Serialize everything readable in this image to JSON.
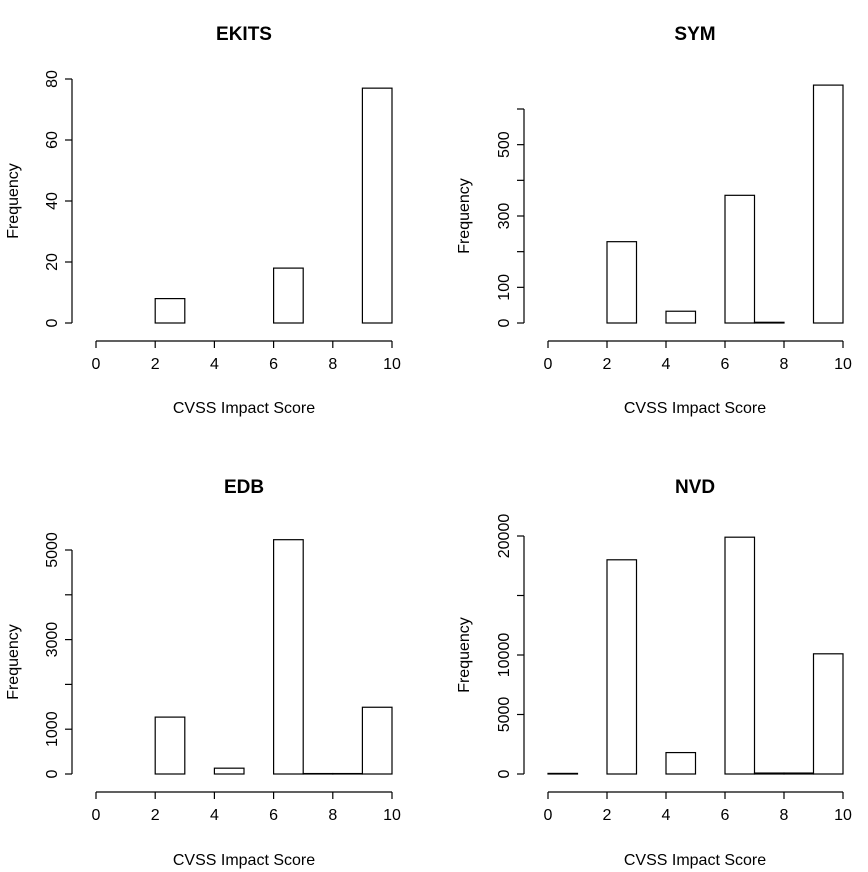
{
  "chart_data": [
    {
      "type": "bar",
      "title": "EKITS",
      "xlabel": "CVSS Impact Score",
      "ylabel": "Frequency",
      "bins": [
        [
          0,
          1
        ],
        [
          1,
          2
        ],
        [
          2,
          3
        ],
        [
          3,
          4
        ],
        [
          4,
          5
        ],
        [
          5,
          6
        ],
        [
          6,
          7
        ],
        [
          7,
          8
        ],
        [
          8,
          9
        ],
        [
          9,
          10
        ]
      ],
      "values": [
        0,
        0,
        8,
        0,
        0,
        0,
        18,
        0,
        0,
        77
      ],
      "xlim": [
        0,
        10
      ],
      "ylim": [
        0,
        80
      ],
      "xticks": [
        0,
        2,
        4,
        6,
        8,
        10
      ],
      "yticks": [
        0,
        20,
        40,
        60,
        80
      ],
      "yticks_labeled": [
        0,
        20,
        40,
        60,
        80
      ]
    },
    {
      "type": "bar",
      "title": "SYM",
      "xlabel": "CVSS Impact Score",
      "ylabel": "Frequency",
      "bins": [
        [
          0,
          1
        ],
        [
          1,
          2
        ],
        [
          2,
          3
        ],
        [
          3,
          4
        ],
        [
          4,
          5
        ],
        [
          5,
          6
        ],
        [
          6,
          7
        ],
        [
          7,
          8
        ],
        [
          8,
          9
        ],
        [
          9,
          10
        ]
      ],
      "values": [
        0,
        0,
        228,
        0,
        33,
        0,
        358,
        2,
        0,
        667
      ],
      "xlim": [
        0,
        10
      ],
      "ylim": [
        0,
        600
      ],
      "xticks": [
        0,
        2,
        4,
        6,
        8,
        10
      ],
      "yticks": [
        0,
        100,
        200,
        300,
        400,
        500,
        600
      ],
      "yticks_labeled": [
        0,
        100,
        300,
        500
      ]
    },
    {
      "type": "bar",
      "title": "EDB",
      "xlabel": "CVSS Impact Score",
      "ylabel": "Frequency",
      "bins": [
        [
          0,
          1
        ],
        [
          1,
          2
        ],
        [
          2,
          3
        ],
        [
          3,
          4
        ],
        [
          4,
          5
        ],
        [
          5,
          6
        ],
        [
          6,
          7
        ],
        [
          7,
          8
        ],
        [
          8,
          9
        ],
        [
          9,
          10
        ]
      ],
      "values": [
        0,
        0,
        1270,
        0,
        130,
        0,
        5230,
        10,
        10,
        1490
      ],
      "xlim": [
        0,
        10
      ],
      "ylim": [
        0,
        5000
      ],
      "xticks": [
        0,
        2,
        4,
        6,
        8,
        10
      ],
      "yticks": [
        0,
        1000,
        2000,
        3000,
        4000,
        5000
      ],
      "yticks_labeled": [
        0,
        1000,
        3000,
        5000
      ]
    },
    {
      "type": "bar",
      "title": "NVD",
      "xlabel": "CVSS Impact Score",
      "ylabel": "Frequency",
      "bins": [
        [
          0,
          1
        ],
        [
          1,
          2
        ],
        [
          2,
          3
        ],
        [
          3,
          4
        ],
        [
          4,
          5
        ],
        [
          5,
          6
        ],
        [
          6,
          7
        ],
        [
          7,
          8
        ],
        [
          8,
          9
        ],
        [
          9,
          10
        ]
      ],
      "values": [
        50,
        0,
        18000,
        0,
        1800,
        0,
        19900,
        80,
        80,
        10100
      ],
      "xlim": [
        0,
        10
      ],
      "ylim": [
        0,
        20000
      ],
      "xticks": [
        0,
        2,
        4,
        6,
        8,
        10
      ],
      "yticks": [
        0,
        5000,
        10000,
        15000,
        20000
      ],
      "yticks_labeled": [
        0,
        5000,
        10000,
        20000
      ]
    }
  ]
}
